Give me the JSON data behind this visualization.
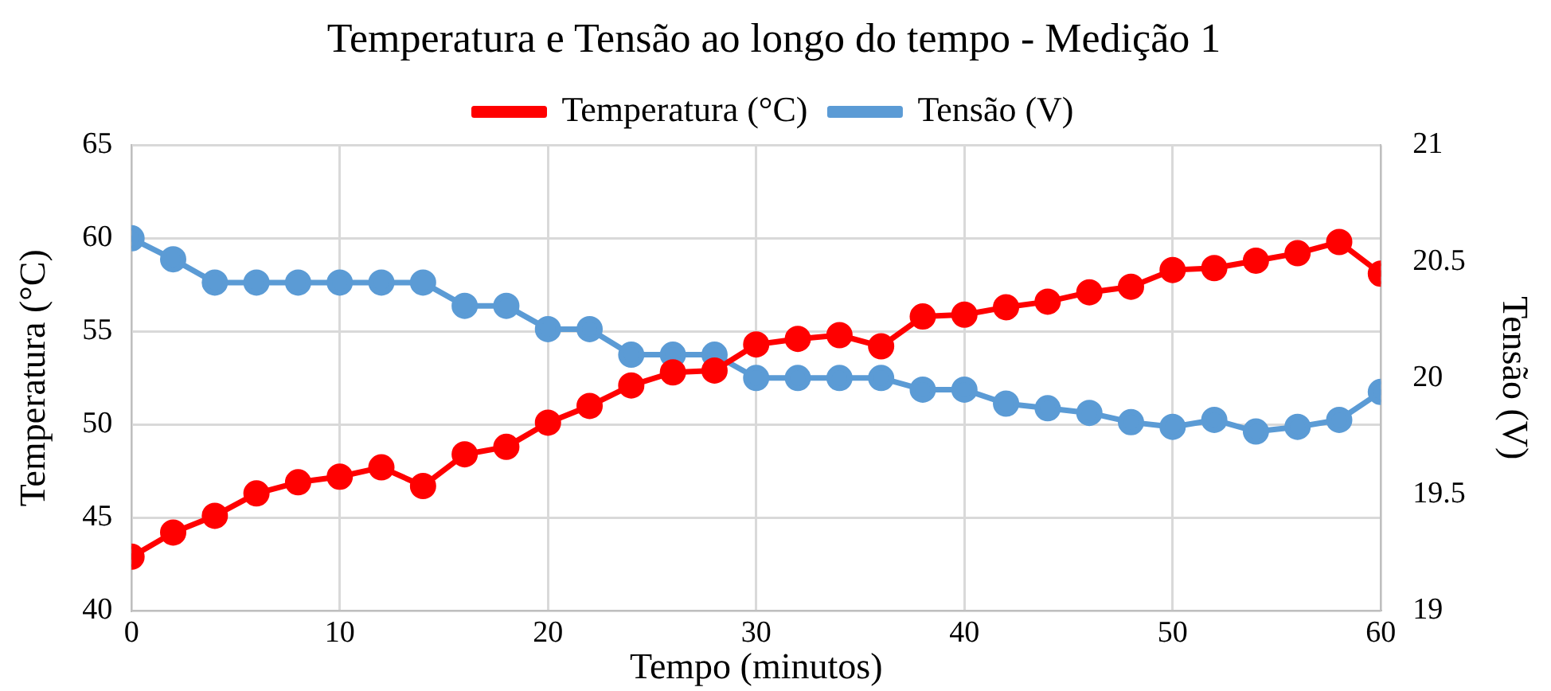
{
  "chart_data": {
    "type": "line",
    "title": "Temperatura e Tensão ao longo do tempo - Medição 1",
    "xlabel": "Tempo (minutos)",
    "ylabel": "Temperatura (°C)",
    "y2label": "Tensão (V)",
    "x": [
      0,
      2,
      4,
      6,
      8,
      10,
      12,
      14,
      16,
      18,
      20,
      22,
      24,
      26,
      28,
      30,
      32,
      34,
      36,
      38,
      40,
      42,
      44,
      46,
      48,
      50,
      52,
      54,
      56,
      58,
      60
    ],
    "series": [
      {
        "name": "Temperatura (°C)",
        "color": "#ff0000",
        "values": [
          42.9,
          44.2,
          45.1,
          46.3,
          46.9,
          47.2,
          47.7,
          46.7,
          48.4,
          48.8,
          50.1,
          51.0,
          52.1,
          52.8,
          52.9,
          54.3,
          54.6,
          54.8,
          54.2,
          55.8,
          55.9,
          56.3,
          56.6,
          57.1,
          57.4,
          58.3,
          58.4,
          58.8,
          59.2,
          59.8,
          58.1
        ]
      },
      {
        "name": "Tensão (V)",
        "color": "#5b9bd5",
        "axis": "y2",
        "values": [
          20.6,
          20.51,
          20.41,
          20.41,
          20.41,
          20.41,
          20.41,
          20.41,
          20.31,
          20.31,
          20.21,
          20.21,
          20.1,
          20.1,
          20.1,
          20.0,
          20.0,
          20.0,
          20.0,
          19.95,
          19.95,
          19.89,
          19.87,
          19.85,
          19.81,
          19.79,
          19.82,
          19.77,
          19.79,
          19.82,
          19.94
        ]
      }
    ],
    "xlim": [
      0,
      60
    ],
    "xticks": [
      0,
      10,
      20,
      30,
      40,
      50,
      60
    ],
    "ylim": [
      40,
      65
    ],
    "yticks": [
      40,
      45,
      50,
      55,
      60,
      65
    ],
    "y2lim": [
      19,
      21
    ],
    "y2ticks": [
      19,
      19.5,
      20,
      20.5,
      21
    ],
    "grid": true,
    "legend": "top",
    "marker": "circle",
    "line_style": "solid"
  }
}
